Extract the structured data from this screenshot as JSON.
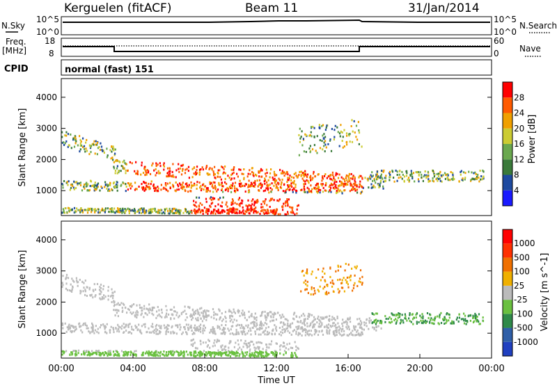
{
  "header": {
    "station": "Kerguelen (fitACF)",
    "beam": "Beam 11",
    "date": "31/Jan/2014"
  },
  "top_panels": {
    "nsky_label": "N.Sky",
    "nsky_ticks": [
      "10^5",
      "10^0"
    ],
    "nsearch_label": "N.Search",
    "nsearch_ticks": [
      "10^5",
      "10^0"
    ],
    "freq_label_1": "Freq.",
    "freq_label_2": "[MHz]",
    "freq_ticks": [
      "18",
      "8"
    ],
    "nave_label": "Nave",
    "nave_ticks": [
      "60",
      "0"
    ],
    "cpid_label": "CPID",
    "cpid_value": "normal (fast) 151"
  },
  "chart_data": [
    {
      "type": "heatmap",
      "name": "power",
      "ylabel": "Slant Range [km]",
      "yticks": [
        "1000",
        "2000",
        "3000",
        "4000"
      ],
      "ylim": [
        200,
        4600
      ],
      "colorbar_label": "Power [dB]",
      "colorbar_ticks": [
        "4",
        "8",
        "12",
        "16",
        "20",
        "24",
        "28"
      ],
      "colorbar_colors": [
        "#1a1aff",
        "#1e4aa0",
        "#3a7a3a",
        "#6aa84f",
        "#cccc33",
        "#f0a000",
        "#ff5a00",
        "#ff0000"
      ]
    },
    {
      "type": "heatmap",
      "name": "velocity",
      "ylabel": "Slant Range [km]",
      "yticks": [
        "1000",
        "2000",
        "3000",
        "4000"
      ],
      "ylim": [
        200,
        4600
      ],
      "colorbar_label": "Velocity [m s^-1]",
      "colorbar_ticks": [
        "1000",
        "500",
        "100",
        "25",
        "-25",
        "-100",
        "-500",
        "-1000"
      ],
      "colorbar_colors": [
        "#2040c0",
        "#2f5fa8",
        "#2f8a4a",
        "#6ac040",
        "#bbbbbb",
        "#f0b000",
        "#f07000",
        "#ff3000",
        "#ff0000"
      ],
      "xlabel": "Time UT",
      "xticks": [
        "00:00",
        "04:00",
        "08:00",
        "12:00",
        "16:00",
        "20:00",
        "00:00"
      ]
    }
  ]
}
